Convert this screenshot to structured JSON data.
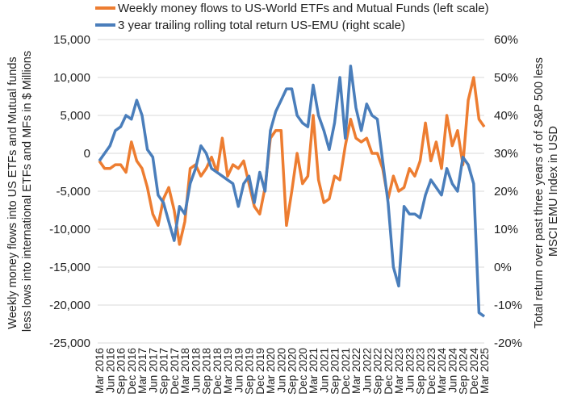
{
  "chart_data": {
    "type": "line",
    "title": "",
    "legend": {
      "placement": "top",
      "entries": [
        "Weekly money flows to US-World ETFs and Mutual Funds (left scale)",
        "3 year trailing rolling total return US-EMU (right scale)"
      ]
    },
    "ylabel_left": "Weekly money flows into US ETFs and Mutual funds less lows into international ETFs and MFs in $ Millions",
    "ylabel_right": "Total return over past three years of of S&P 500 less MSCI EMU Index in USD",
    "ylim_left": [
      -25000,
      15000
    ],
    "ylim_right": [
      -20,
      60
    ],
    "yticks_left": [
      "15,000",
      "10,000",
      "5,000",
      "0",
      "-5,000",
      "-10,000",
      "-15,000",
      "-20,000",
      "-25,000"
    ],
    "yticks_right": [
      "60%",
      "50%",
      "40%",
      "30%",
      "20%",
      "10%",
      "0%",
      "-10%",
      "-20%"
    ],
    "grid": true,
    "x_ticks": [
      "Mar 2016",
      "Jun 2016",
      "Sep 2016",
      "Dec 2016",
      "Mar 2017",
      "Jun 2017",
      "Sep 2017",
      "Dec 2017",
      "Mar 2018",
      "Jun 2018",
      "Sep 2018",
      "Dec 2018",
      "Mar 2019",
      "Jun 2019",
      "Sep 2019",
      "Dec 2019",
      "Mar 2020",
      "Jun 2020",
      "Sep 2020",
      "Dec 2020",
      "Mar 2021",
      "Jun 2021",
      "Sep 2021",
      "Dec 2021",
      "Mar 2022",
      "Jun 2022",
      "Sep 2022",
      "Dec 2022",
      "Mar 2023",
      "Jun 2023",
      "Sep 2023",
      "Dec 2023",
      "Mar 2024",
      "Jun 2024",
      "Sep 2024",
      "Dec 2024",
      "Mar 2025"
    ],
    "x_quarter_index_step": 0.5,
    "series": [
      {
        "name": "Weekly money flows to US-World ETFs and Mutual Funds (left scale)",
        "axis": "left",
        "color": "#ED7D31",
        "values": [
          -1000,
          -2000,
          -2000,
          -1500,
          -1500,
          -2500,
          1500,
          -1000,
          -2000,
          -4500,
          -8000,
          -9500,
          -6000,
          -4500,
          -7500,
          -12000,
          -9000,
          -2000,
          -1500,
          -3000,
          -2000,
          -500,
          -2500,
          2000,
          -3000,
          -1500,
          -2000,
          -1000,
          -4000,
          -7000,
          -8000,
          -4500,
          2000,
          3000,
          3000,
          -9500,
          -5000,
          0,
          -4000,
          -3000,
          5000,
          -3500,
          -6500,
          -6000,
          -3000,
          -3500,
          1000,
          4500,
          2000,
          1500,
          2000,
          0,
          0,
          -2000,
          -6000,
          -3000,
          -5000,
          -4500,
          -2000,
          -3000,
          -1000,
          4000,
          -1000,
          1500,
          -2000,
          5000,
          1000,
          3000,
          -1500,
          7000,
          10000,
          4500,
          3500
        ]
      },
      {
        "name": "3 year trailing rolling total return US-EMU (right scale)",
        "axis": "right",
        "color": "#4A7EBB",
        "values": [
          28,
          30,
          32,
          36,
          37,
          40,
          39,
          44,
          40,
          31,
          29,
          19,
          17,
          12,
          7,
          16,
          14,
          22,
          26,
          32,
          30,
          26,
          25,
          24,
          23,
          22,
          16,
          22,
          24,
          17,
          25,
          20,
          36,
          41,
          44,
          47,
          47,
          40,
          38,
          37,
          48,
          40,
          36,
          31,
          38,
          50,
          34,
          53,
          42,
          36,
          43,
          40,
          39,
          28,
          17,
          0,
          -5,
          16,
          14,
          14,
          13,
          19,
          23,
          21,
          19,
          26,
          22,
          20,
          29,
          27,
          22,
          -12,
          -13
        ]
      }
    ]
  }
}
